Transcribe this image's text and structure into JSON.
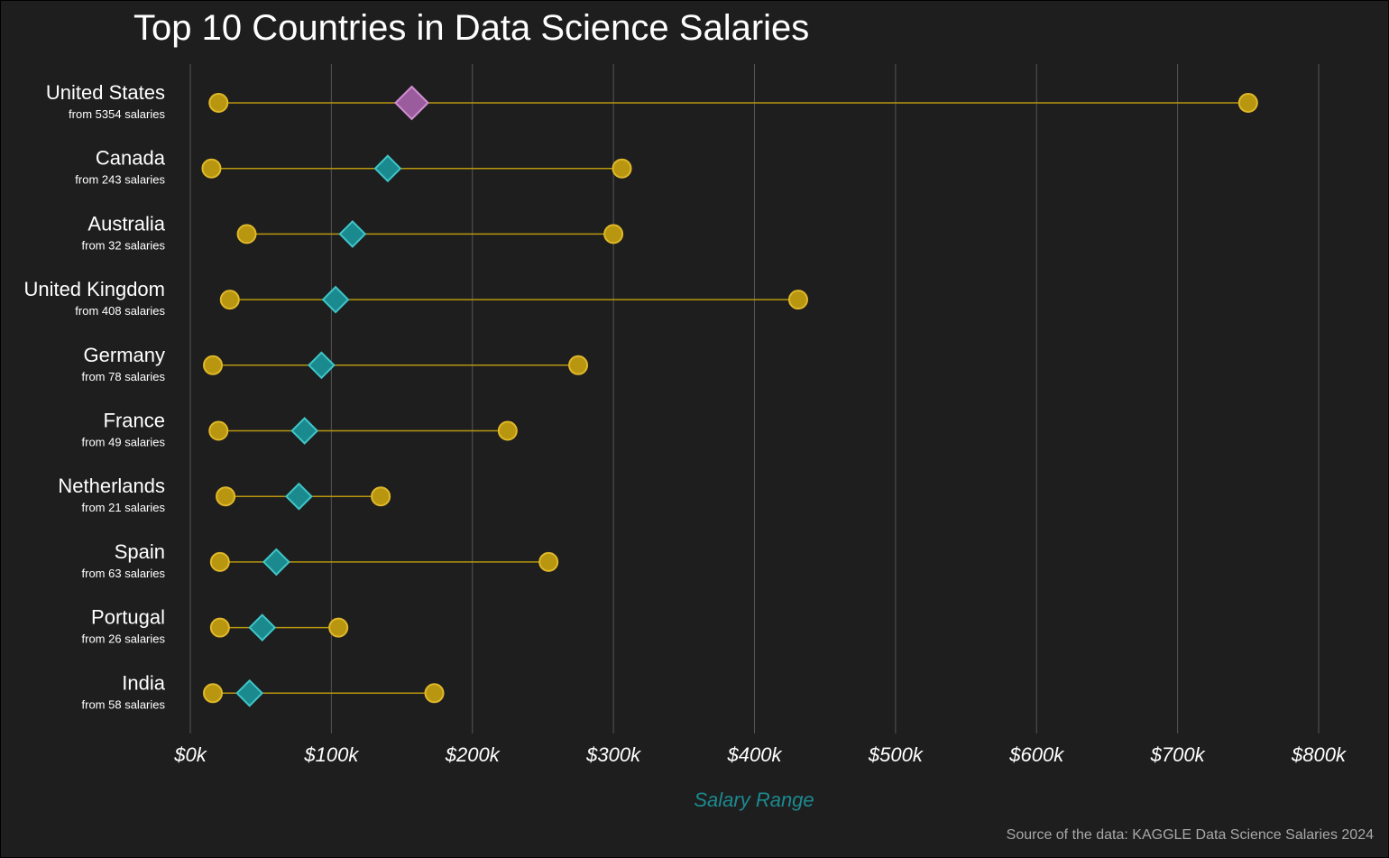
{
  "chart_data": {
    "type": "dumbbell",
    "title": "Top 10 Countries in Data Science Salaries",
    "xlabel": "Salary Range",
    "ylabel": "",
    "caption": "Source of the data: KAGGLE Data Science Salaries 2024",
    "xlim": [
      0,
      800000
    ],
    "x_ticks": [
      0,
      100000,
      200000,
      300000,
      400000,
      500000,
      600000,
      700000,
      800000
    ],
    "x_tick_labels": [
      "$0k",
      "$100k",
      "$200k",
      "$300k",
      "$400k",
      "$500k",
      "$600k",
      "$700k",
      "$800k"
    ],
    "grid": "vertical",
    "colors": {
      "background": "#1e1e1e",
      "range_point": "#b8960f",
      "range_point_edge": "#e0b82a",
      "median_highlight": "#9b5c9e",
      "median": "#1b8a8f",
      "median_edge": "#3fc6c9",
      "grid": "#555555",
      "axis_title": "#1b8a8f"
    },
    "rows": [
      {
        "country": "United States",
        "count_label": "from 5354 salaries",
        "min": 20000,
        "median": 157000,
        "max": 750000,
        "highlight": true
      },
      {
        "country": "Canada",
        "count_label": "from 243 salaries",
        "min": 15000,
        "median": 140000,
        "max": 306000,
        "highlight": false
      },
      {
        "country": "Australia",
        "count_label": "from 32 salaries",
        "min": 40000,
        "median": 115000,
        "max": 300000,
        "highlight": false
      },
      {
        "country": "United Kingdom",
        "count_label": "from 408 salaries",
        "min": 28000,
        "median": 103000,
        "max": 431000,
        "highlight": false
      },
      {
        "country": "Germany",
        "count_label": "from 78 salaries",
        "min": 16000,
        "median": 93000,
        "max": 275000,
        "highlight": false
      },
      {
        "country": "France",
        "count_label": "from 49 salaries",
        "min": 20000,
        "median": 81000,
        "max": 225000,
        "highlight": false
      },
      {
        "country": "Netherlands",
        "count_label": "from 21 salaries",
        "min": 25000,
        "median": 77000,
        "max": 135000,
        "highlight": false
      },
      {
        "country": "Spain",
        "count_label": "from 63 salaries",
        "min": 21000,
        "median": 61000,
        "max": 254000,
        "highlight": false
      },
      {
        "country": "Portugal",
        "count_label": "from 26 salaries",
        "min": 21000,
        "median": 51000,
        "max": 105000,
        "highlight": false
      },
      {
        "country": "India",
        "count_label": "from 58 salaries",
        "min": 16000,
        "median": 42000,
        "max": 173000,
        "highlight": false
      }
    ]
  }
}
